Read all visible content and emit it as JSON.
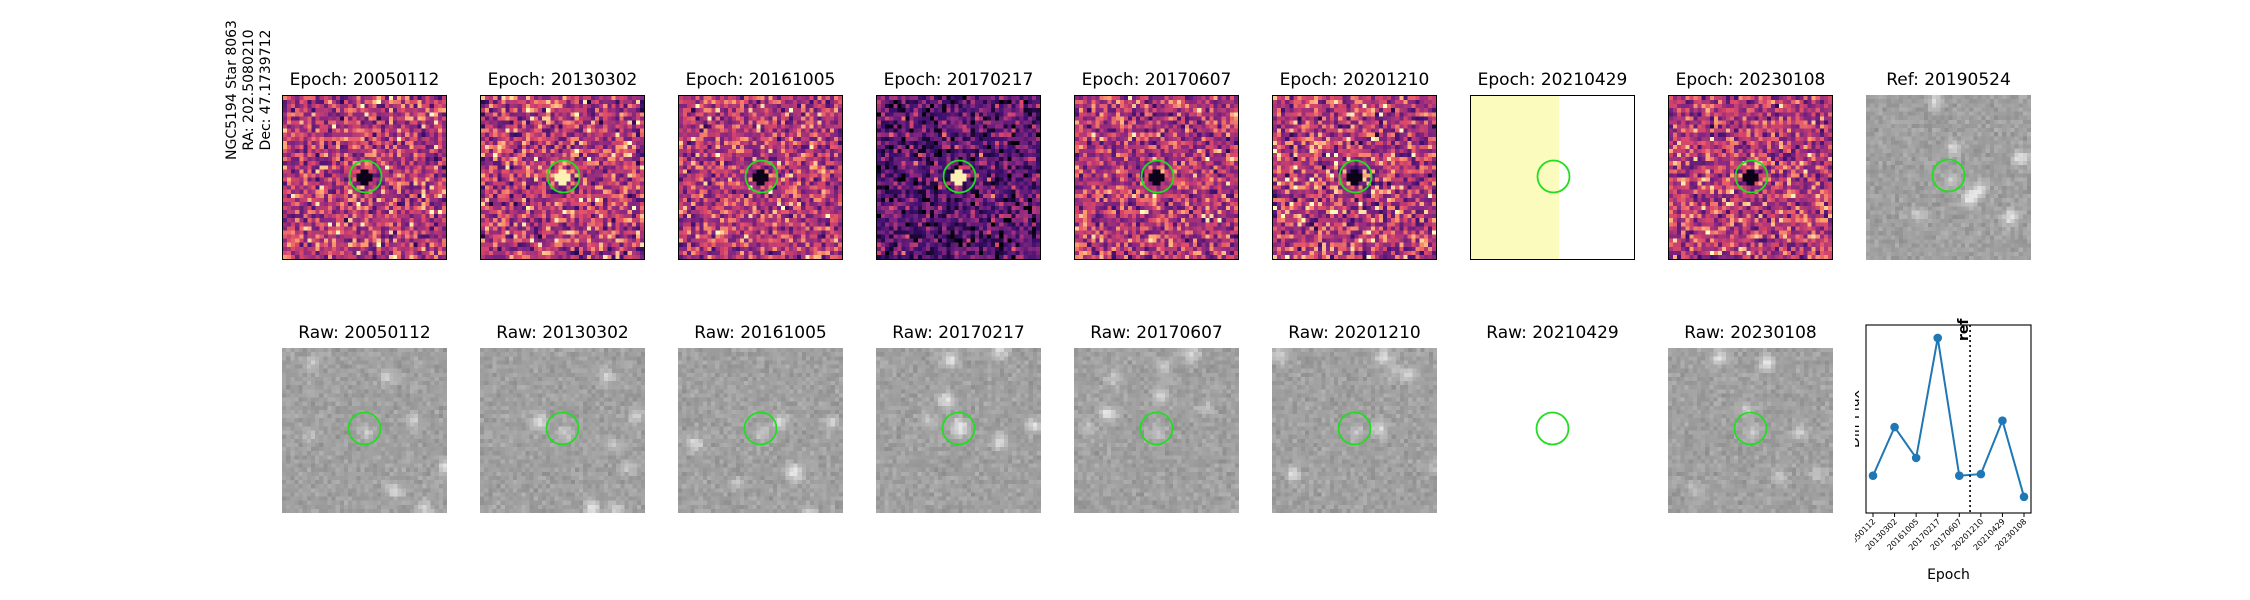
{
  "target_label": {
    "lines": [
      "NGC5194 Star 8063",
      "RA: 202.5080210",
      "Dec: 47.1739712"
    ]
  },
  "epoch_row": [
    {
      "title": "Epoch: 20050112",
      "style": "diff",
      "contrast": 0.55,
      "source": "dark"
    },
    {
      "title": "Epoch: 20130302",
      "style": "diff",
      "contrast": 0.7,
      "source": "bright"
    },
    {
      "title": "Epoch: 20161005",
      "style": "diff",
      "contrast": 0.5,
      "source": "dark"
    },
    {
      "title": "Epoch: 20170217",
      "style": "diff-dark",
      "contrast": 0.75,
      "source": "bright"
    },
    {
      "title": "Epoch: 20170607",
      "style": "diff",
      "contrast": 0.5,
      "source": "dark"
    },
    {
      "title": "Epoch: 20201210",
      "style": "diff",
      "contrast": 0.75,
      "source": "dark"
    },
    {
      "title": "Epoch: 20210429",
      "style": "partial",
      "coverage": 0.54
    },
    {
      "title": "Epoch: 20230108",
      "style": "diff",
      "contrast": 0.5,
      "source": "dark"
    },
    {
      "title": "Ref: 20190524",
      "style": "raw"
    }
  ],
  "raw_row": [
    {
      "title": "Raw: 20050112",
      "style": "raw"
    },
    {
      "title": "Raw: 20130302",
      "style": "raw"
    },
    {
      "title": "Raw: 20161005",
      "style": "raw"
    },
    {
      "title": "Raw: 20170217",
      "style": "raw"
    },
    {
      "title": "Raw: 20170607",
      "style": "raw"
    },
    {
      "title": "Raw: 20201210",
      "style": "raw"
    },
    {
      "title": "Raw: 20210429",
      "style": "empty"
    },
    {
      "title": "Raw: 20230108",
      "style": "raw"
    }
  ],
  "colors": {
    "aperture": "#22dd22",
    "series": "#1f77b4",
    "partial_fill": "#fbfbbe"
  },
  "chart_data": {
    "type": "line",
    "title": "",
    "xlabel": "Epoch",
    "ylabel": "Diff Flux",
    "categories": [
      "20050112",
      "20130302",
      "20161005",
      "20170217",
      "20170607",
      "20201210",
      "20210429",
      "20230108"
    ],
    "values": [
      0.15,
      0.45,
      0.26,
      1.0,
      0.15,
      0.16,
      0.49,
      0.02
    ],
    "ylim": [
      -0.08,
      1.08
    ],
    "ref_marker": {
      "label": "ref",
      "position_between": [
        "20170607",
        "20201210"
      ]
    },
    "grid": false,
    "legend": "none"
  }
}
